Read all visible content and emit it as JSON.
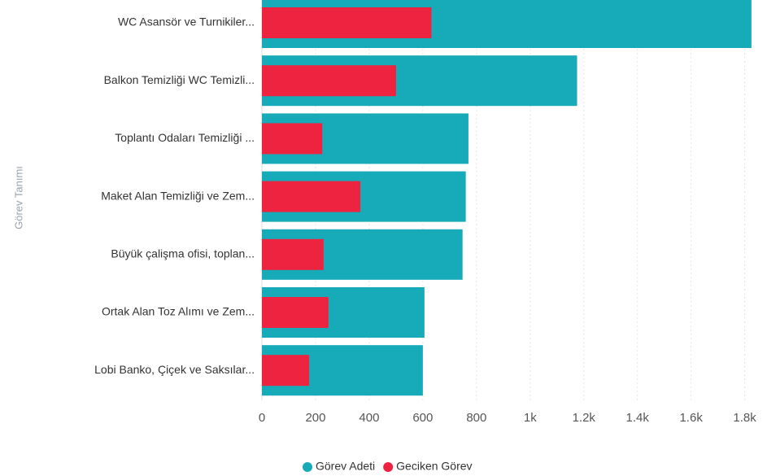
{
  "chart_data": {
    "type": "bar",
    "orientation": "horizontal",
    "y_axis_label": "Görev Tanımı",
    "categories": [
      "WC Asansör ve Turnikiler...",
      "Balkon Temizliği WC Temizli...",
      "Toplantı Odaları Temizliği ...",
      "Maket Alan Temizliği ve Zem...",
      "Büyük çalişma ofisi, toplan...",
      "Ortak Alan Toz Alımı ve Zem...",
      "Lobi Banko, Çiçek ve Saksılar..."
    ],
    "series": [
      {
        "name": "Görev Adeti",
        "color": "#17aab9",
        "values": [
          1825,
          1175,
          770,
          760,
          748,
          606,
          600
        ]
      },
      {
        "name": "Geciken Görev",
        "color": "#ee2340",
        "values": [
          632,
          500,
          225,
          367,
          230,
          248,
          176
        ]
      }
    ],
    "xlim": [
      0,
      1880
    ],
    "xticks": [
      0,
      200,
      400,
      600,
      800,
      {
        "value": 1000,
        "label": "1k"
      },
      {
        "value": 1200,
        "label": "1.2k"
      },
      {
        "value": 1400,
        "label": "1.4k"
      },
      {
        "value": 1600,
        "label": "1.6k"
      },
      {
        "value": 1800,
        "label": "1.8k"
      }
    ],
    "grid": true,
    "legend": "bottom"
  }
}
